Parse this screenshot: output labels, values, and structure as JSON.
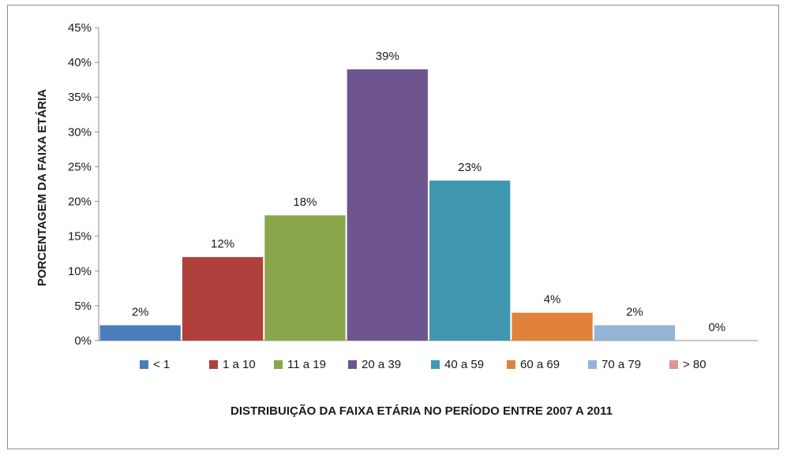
{
  "chart_data": {
    "type": "bar",
    "title": "",
    "xlabel": "DISTRIBUIÇÃO DA FAIXA ETÁRIA NO PERÍODO ENTRE 2007 A 2011",
    "ylabel": "PORCENTAGEM DA FAIXA ETÁRIA",
    "ylim": [
      0,
      45
    ],
    "y_ticks": [
      "0%",
      "5%",
      "10%",
      "15%",
      "20%",
      "25%",
      "30%",
      "35%",
      "40%",
      "45%"
    ],
    "grid": false,
    "legend_position": "bottom",
    "categories": [
      "< 1",
      "1 a 10",
      "11 a 19",
      "20 a 39",
      "40 a 59",
      "60 a 69",
      "70 a 79",
      "> 80"
    ],
    "values": [
      2.2,
      12,
      18,
      39,
      23,
      4,
      2.2,
      0
    ],
    "data_labels": [
      "2%",
      "12%",
      "18%",
      "39%",
      "23%",
      "4%",
      "2%",
      "0%"
    ],
    "colors": [
      "#4a7ebb",
      "#b0403b",
      "#8aa64a",
      "#6e558f",
      "#3f98b0",
      "#e0823a",
      "#95b3d7",
      "#d99694"
    ]
  }
}
